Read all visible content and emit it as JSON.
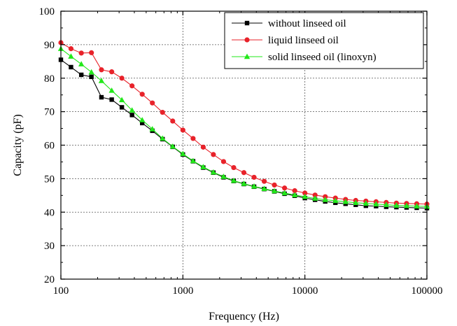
{
  "chart_data": {
    "type": "line",
    "xlabel": "Frequency (Hz)",
    "ylabel": "Capacity (pF)",
    "xscale": "log",
    "xlim": [
      100,
      100000
    ],
    "ylim": [
      20,
      100
    ],
    "x_ticks": [
      100,
      1000,
      10000,
      100000
    ],
    "x_tick_labels": [
      "100",
      "1000",
      "10000",
      "100000"
    ],
    "y_ticks": [
      20,
      30,
      40,
      50,
      60,
      70,
      80,
      90,
      100
    ],
    "y_tick_labels": [
      "20",
      "30",
      "40",
      "50",
      "60",
      "70",
      "80",
      "90",
      "100"
    ],
    "grid": true,
    "legend_position": "top-right",
    "x": [
      100,
      121,
      147,
      178,
      215,
      261,
      316,
      383,
      464,
      562,
      681,
      825,
      1000,
      1212,
      1468,
      1778,
      2154,
      2610,
      3162,
      3831,
      4642,
      5623,
      6813,
      8254,
      10000,
      12115,
      14678,
      17783,
      21544,
      26102,
      31623,
      38312,
      46416,
      56234,
      68129,
      82540,
      100000
    ],
    "series": [
      {
        "name": "without linseed oil",
        "color": "#000000",
        "marker": "square",
        "values": [
          85.5,
          83.3,
          81.0,
          80.4,
          74.3,
          73.6,
          71.3,
          69.0,
          66.6,
          64.3,
          61.8,
          59.5,
          57.2,
          55.2,
          53.3,
          51.8,
          50.4,
          49.3,
          48.4,
          47.6,
          46.9,
          46.2,
          45.5,
          44.9,
          44.2,
          43.7,
          43.2,
          42.8,
          42.5,
          42.2,
          41.9,
          41.8,
          41.6,
          41.5,
          41.4,
          41.3,
          41.2
        ]
      },
      {
        "name": "liquid linseed oil",
        "color": "#e8222a",
        "marker": "circle",
        "values": [
          90.6,
          88.8,
          87.5,
          87.6,
          82.5,
          81.9,
          80.0,
          77.7,
          75.2,
          72.6,
          69.8,
          67.2,
          64.5,
          62.0,
          59.4,
          57.2,
          55.1,
          53.3,
          51.8,
          50.4,
          49.2,
          48.1,
          47.2,
          46.4,
          45.7,
          45.1,
          44.6,
          44.2,
          43.8,
          43.5,
          43.3,
          43.1,
          42.9,
          42.7,
          42.6,
          42.5,
          42.4
        ]
      },
      {
        "name": "solid linseed oil (linoxyn)",
        "color": "#22e81a",
        "marker": "triangle",
        "values": [
          88.8,
          86.5,
          84.2,
          81.8,
          79.2,
          76.3,
          73.5,
          70.4,
          67.5,
          64.8,
          62.0,
          59.6,
          57.4,
          55.3,
          53.5,
          51.9,
          50.6,
          49.4,
          48.5,
          47.7,
          47.0,
          46.3,
          45.7,
          45.1,
          44.6,
          44.1,
          43.7,
          43.4,
          43.1,
          42.8,
          42.6,
          42.4,
          42.2,
          42.0,
          41.9,
          41.8,
          41.7
        ]
      }
    ]
  }
}
